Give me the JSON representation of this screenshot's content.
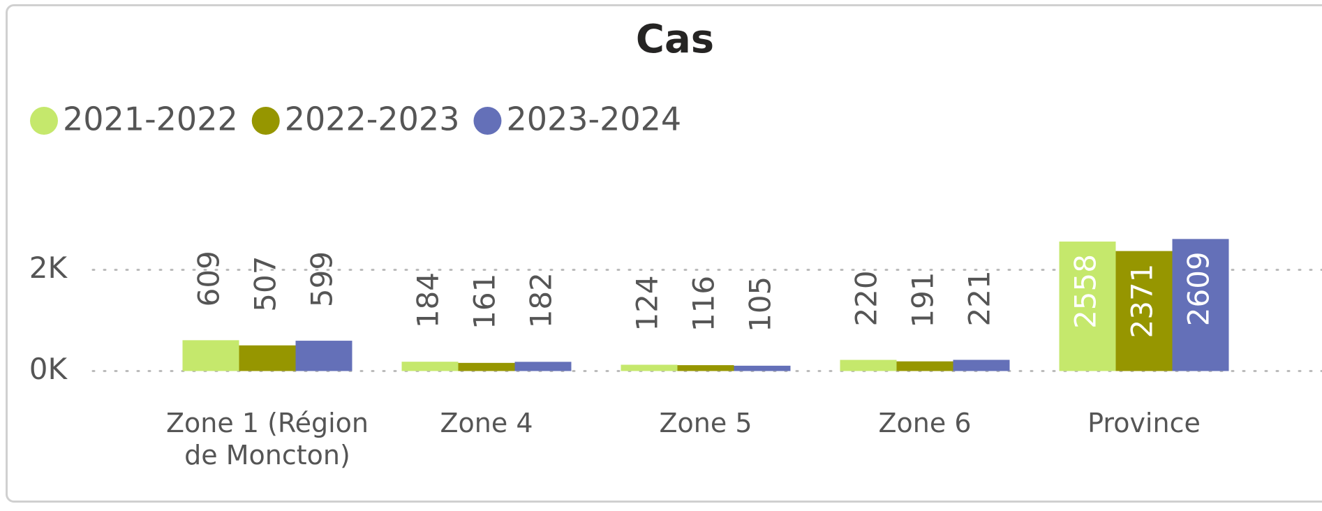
{
  "chart_data": {
    "type": "bar",
    "title": "Cas",
    "categories": [
      "Zone 1 (Région de Moncton)",
      "Zone 4",
      "Zone 5",
      "Zone 6",
      "Province"
    ],
    "series": [
      {
        "name": "2021-2022",
        "color": "#c5e86c",
        "values": [
          609,
          184,
          124,
          220,
          2558
        ]
      },
      {
        "name": "2022-2023",
        "color": "#969600",
        "values": [
          507,
          161,
          116,
          191,
          2371
        ]
      },
      {
        "name": "2023-2024",
        "color": "#6470b8",
        "values": [
          599,
          182,
          105,
          221,
          2609
        ]
      }
    ],
    "ylim": [
      0,
      3000
    ],
    "yticks": [
      {
        "value": 0,
        "label": "0K"
      },
      {
        "value": 2000,
        "label": "2K"
      }
    ],
    "grid": true,
    "legend": "top-left"
  }
}
